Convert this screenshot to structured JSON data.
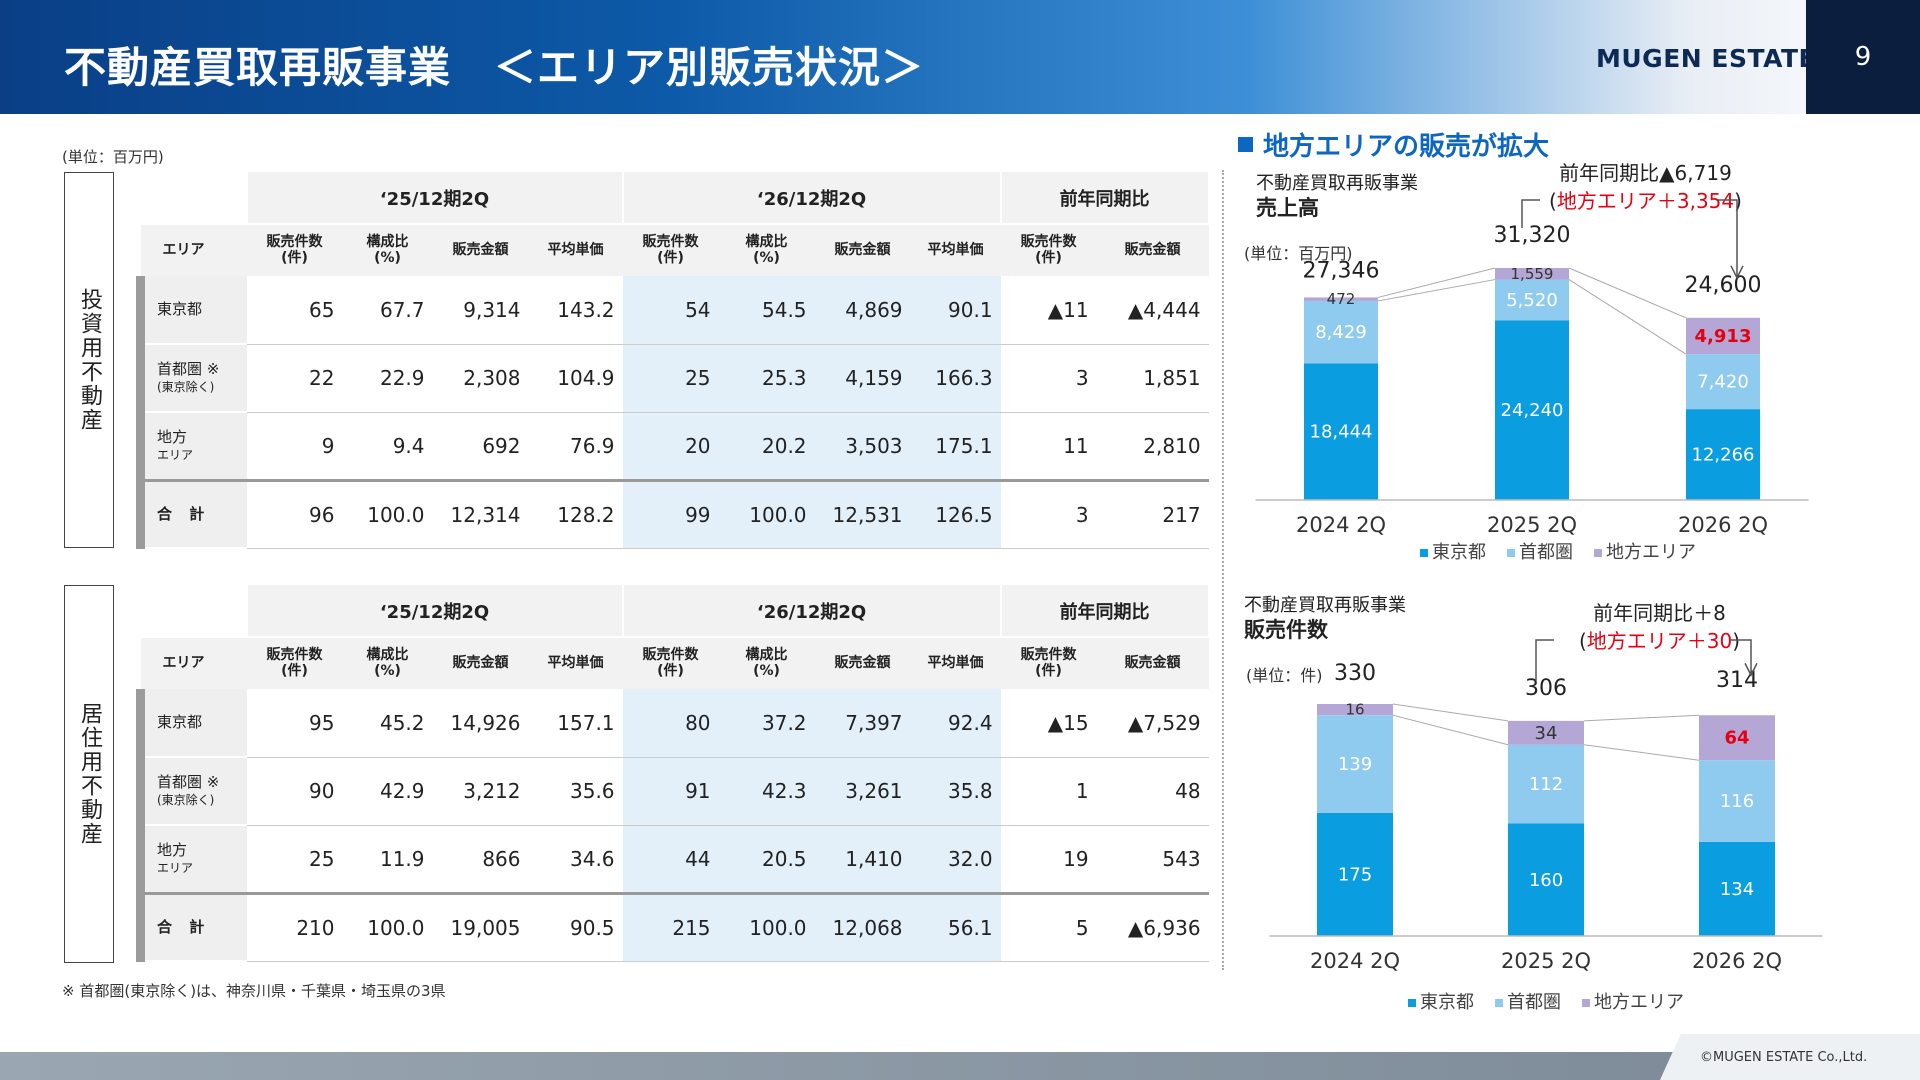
{
  "header": {
    "title": "不動産買取再販事業　＜エリア別販売状況＞",
    "logo": "MUGEN ESTATE",
    "page": "9"
  },
  "unit_left": "(単位：百万円)",
  "note": "※ 首都圏(東京除く)は、神奈川県・千葉県・埼玉県の3県",
  "copyright": "©MUGEN ESTATE Co.,Ltd.",
  "tables": {
    "periods": [
      "‘25/12期2Q",
      "‘26/12期2Q",
      "前年同期比"
    ],
    "subheaders": [
      "エリア",
      "販売件数\n(件)",
      "構成比\n(%)",
      "販売金額",
      "平均単価",
      "販売件数\n(件)",
      "構成比\n(%)",
      "販売金額",
      "平均単価",
      "販売件数\n(件)",
      "販売金額"
    ],
    "investment": {
      "label": "投資用不動産",
      "rows": [
        {
          "area": "東京都",
          "sub": "",
          "cells": [
            "65",
            "67.7",
            "9,314",
            "143.2",
            "54",
            "54.5",
            "4,869",
            "90.1",
            "▲11",
            "▲4,444"
          ]
        },
        {
          "area": "首都圏 ※",
          "sub": "(東京除く)",
          "cells": [
            "22",
            "22.9",
            "2,308",
            "104.9",
            "25",
            "25.3",
            "4,159",
            "166.3",
            "3",
            "1,851"
          ]
        },
        {
          "area": "地方",
          "sub": "エリア",
          "cells": [
            "9",
            "9.4",
            "692",
            "76.9",
            "20",
            "20.2",
            "3,503",
            "175.1",
            "11",
            "2,810"
          ]
        },
        {
          "area": "合 計",
          "sub": "",
          "cells": [
            "96",
            "100.0",
            "12,314",
            "128.2",
            "99",
            "100.0",
            "12,531",
            "126.5",
            "3",
            "217"
          ]
        }
      ]
    },
    "residential": {
      "label": "居住用不動産",
      "rows": [
        {
          "area": "東京都",
          "sub": "",
          "cells": [
            "95",
            "45.2",
            "14,926",
            "157.1",
            "80",
            "37.2",
            "7,397",
            "92.4",
            "▲15",
            "▲7,529"
          ]
        },
        {
          "area": "首都圏 ※",
          "sub": "(東京除く)",
          "cells": [
            "90",
            "42.9",
            "3,212",
            "35.6",
            "91",
            "42.3",
            "3,261",
            "35.8",
            "1",
            "48"
          ]
        },
        {
          "area": "地方",
          "sub": "エリア",
          "cells": [
            "25",
            "11.9",
            "866",
            "34.6",
            "44",
            "20.5",
            "1,410",
            "32.0",
            "19",
            "543"
          ]
        },
        {
          "area": "合 計",
          "sub": "",
          "cells": [
            "210",
            "100.0",
            "19,005",
            "90.5",
            "215",
            "100.0",
            "12,068",
            "56.1",
            "5",
            "▲6,936"
          ]
        }
      ]
    }
  },
  "right_heading": "地方エリアの販売が拡大",
  "colors": {
    "tokyo": "#0a9ee0",
    "shutoken": "#8fcbee",
    "chiho": "#b4a7d6",
    "red": "#e60012"
  },
  "chart_data": [
    {
      "type": "bar",
      "stacked": true,
      "title_line1": "不動産買取再販事業",
      "title_line2": "売上高",
      "unit": "(単位：百万円)",
      "categories": [
        "2024 2Q",
        "2025 2Q",
        "2026 2Q"
      ],
      "series": [
        {
          "name": "東京都",
          "values": [
            18444,
            24240,
            12266
          ],
          "labels": [
            "18,444",
            "24,240",
            "12,266"
          ]
        },
        {
          "name": "首都圏",
          "values": [
            8429,
            5520,
            7420
          ],
          "labels": [
            "8,429",
            "5,520",
            "7,420"
          ]
        },
        {
          "name": "地方エリア",
          "values": [
            472,
            1559,
            4913
          ],
          "labels": [
            "472",
            "1,559",
            "4,913"
          ]
        }
      ],
      "totals": [
        "27,346",
        "31,320",
        "24,600"
      ],
      "ylim": [
        0,
        31320
      ],
      "annotation_line1": "前年同期比▲6,719",
      "annotation_line2": "(地方エリア＋3,354)",
      "annotation_prefix": "(",
      "annotation_red": "地方エリア＋3,354",
      "annotation_suffix": ")"
    },
    {
      "type": "bar",
      "stacked": true,
      "title_line1": "不動産買取再販事業",
      "title_line2": "販売件数",
      "unit": "(単位：件)",
      "categories": [
        "2024 2Q",
        "2025 2Q",
        "2026 2Q"
      ],
      "series": [
        {
          "name": "東京都",
          "values": [
            175,
            160,
            134
          ],
          "labels": [
            "175",
            "160",
            "134"
          ]
        },
        {
          "name": "首都圏",
          "values": [
            139,
            112,
            116
          ],
          "labels": [
            "139",
            "112",
            "116"
          ]
        },
        {
          "name": "地方エリア",
          "values": [
            16,
            34,
            64
          ],
          "labels": [
            "16",
            "34",
            "64"
          ]
        }
      ],
      "totals": [
        "330",
        "306",
        "314"
      ],
      "ylim": [
        0,
        330
      ],
      "annotation_line1": "前年同期比＋8",
      "annotation_prefix": "(",
      "annotation_red": "地方エリア＋30",
      "annotation_suffix": ")"
    }
  ]
}
